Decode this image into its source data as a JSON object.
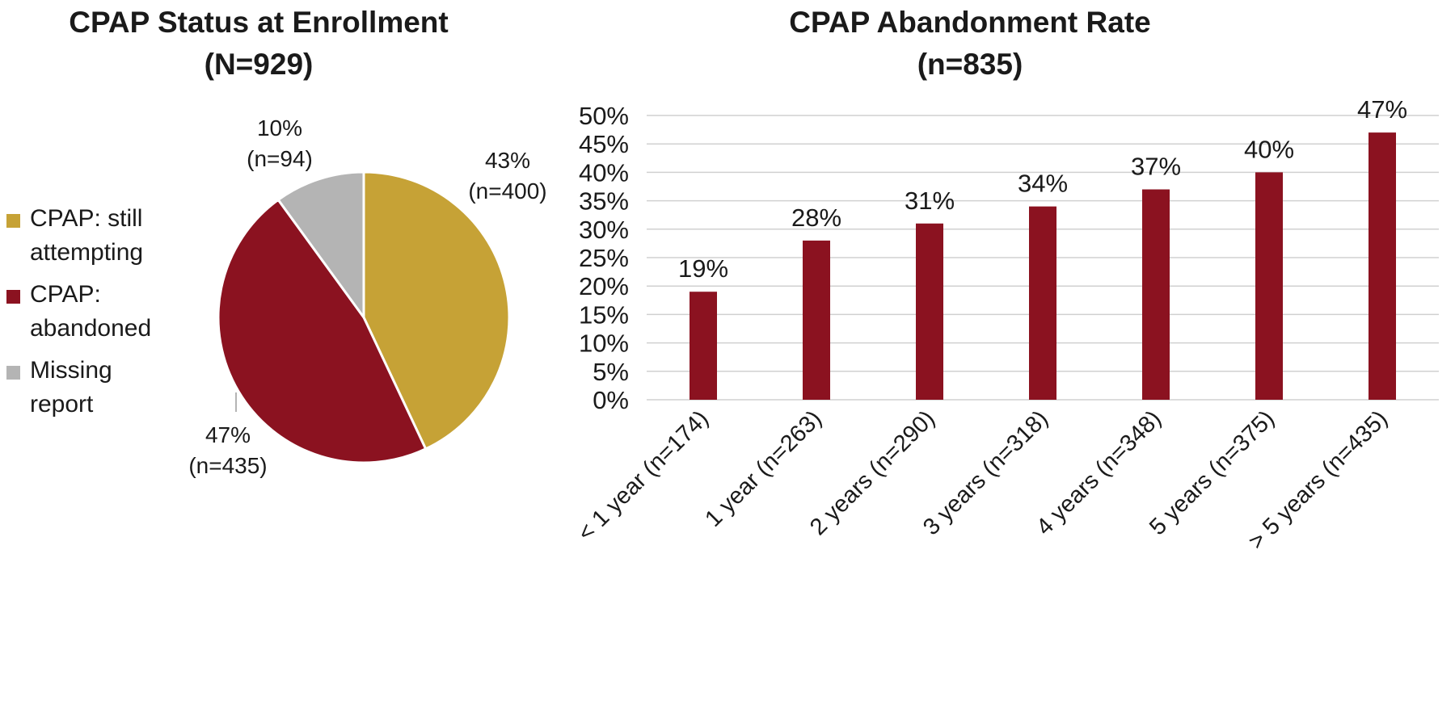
{
  "colors": {
    "still_attempting": "#C6A236",
    "abandoned": "#8B1220",
    "missing": "#B4B4B4",
    "bar": "#8B1220",
    "grid": "#D0D0D0",
    "text": "#1A1A1A"
  },
  "pie_title": [
    "CPAP Status at Enrollment",
    "(N=929)"
  ],
  "bar_title": [
    "CPAP Abandonment Rate",
    "(n=835)"
  ],
  "legend": [
    {
      "label_lines": [
        "CPAP: still",
        "attempting"
      ],
      "color_key": "still_attempting"
    },
    {
      "label_lines": [
        "CPAP:",
        "abandoned"
      ],
      "color_key": "abandoned"
    },
    {
      "label_lines": [
        "Missing",
        "report"
      ],
      "color_key": "missing"
    }
  ],
  "chart_data": [
    {
      "type": "pie",
      "title": "CPAP Status at Enrollment (N=929)",
      "slices": [
        {
          "name": "CPAP: still attempting",
          "percent": 43,
          "n": 400,
          "label_lines": [
            "43%",
            "(n=400)"
          ],
          "color_key": "still_attempting"
        },
        {
          "name": "CPAP: abandoned",
          "percent": 47,
          "n": 435,
          "label_lines": [
            "47%",
            "(n=435)"
          ],
          "color_key": "abandoned"
        },
        {
          "name": "Missing report",
          "percent": 10,
          "n": 94,
          "label_lines": [
            "10%",
            "(n=94)"
          ],
          "color_key": "missing"
        }
      ],
      "legend_placement": "left"
    },
    {
      "type": "bar",
      "title": "CPAP Abandonment Rate (n=835)",
      "categories": [
        "< 1 year (n=174)",
        "1 year (n=263)",
        "2 years (n=290)",
        "3 years (n=318)",
        "4 years (n=348)",
        "5 years (n=375)",
        "> 5 years (n=435)"
      ],
      "values": [
        19,
        28,
        31,
        34,
        37,
        40,
        47
      ],
      "value_labels": [
        "19%",
        "28%",
        "31%",
        "34%",
        "37%",
        "40%",
        "47%"
      ],
      "ylim": [
        0,
        50
      ],
      "yticks": [
        "0%",
        "5%",
        "10%",
        "15%",
        "20%",
        "25%",
        "30%",
        "35%",
        "40%",
        "45%",
        "50%"
      ],
      "grid": true
    }
  ]
}
